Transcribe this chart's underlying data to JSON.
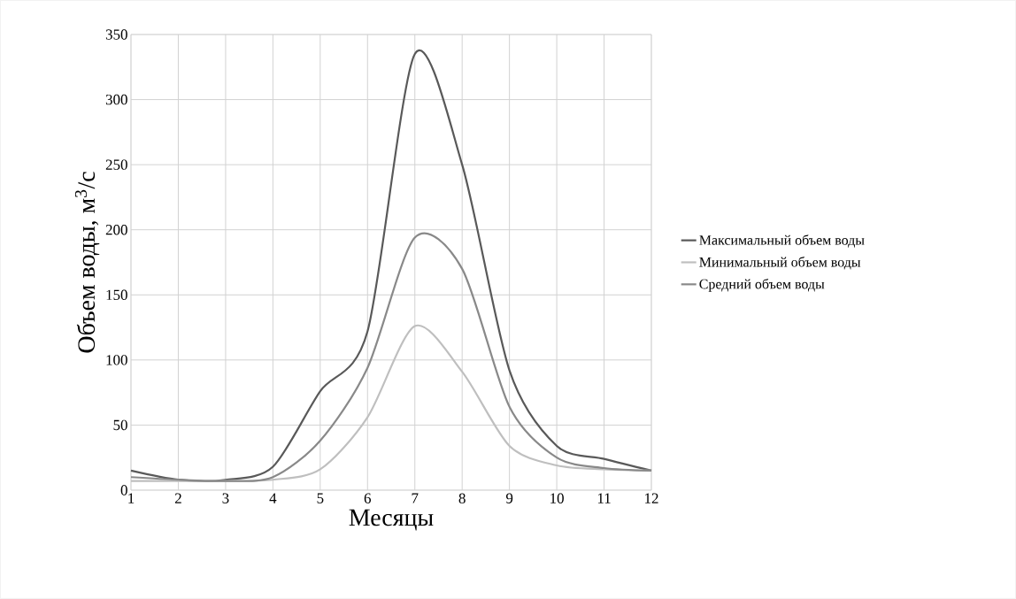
{
  "chart_data": {
    "type": "line",
    "xlabel": "Месяцы",
    "ylabel": "Объем воды, м$^{3}$/с",
    "x": [
      1,
      2,
      3,
      4,
      5,
      6,
      7,
      8,
      9,
      10,
      11,
      12
    ],
    "xlim": [
      1,
      12
    ],
    "xticks": [
      1,
      2,
      3,
      4,
      5,
      6,
      7,
      8,
      9,
      10,
      11,
      12
    ],
    "ylim": [
      0,
      350
    ],
    "yticks": [
      0,
      50,
      100,
      150,
      200,
      250,
      300,
      350
    ],
    "grid": true,
    "legend": "right",
    "marker": "none",
    "line_style": "solid",
    "series": [
      {
        "name": "Максимальный объем воды",
        "color": "#595959",
        "values": [
          15,
          8,
          8,
          18,
          76,
          122,
          335,
          250,
          92,
          34,
          24,
          15
        ]
      },
      {
        "name": "Минимальный объем воды",
        "color": "#bfbfbf",
        "values": [
          7,
          7,
          7,
          8,
          16,
          56,
          126,
          91,
          34,
          19,
          16,
          15
        ]
      },
      {
        "name": "Средний объем воды",
        "color": "#898989",
        "values": [
          10,
          8,
          7,
          10,
          38,
          94,
          194,
          170,
          64,
          25,
          17,
          15
        ]
      }
    ]
  }
}
